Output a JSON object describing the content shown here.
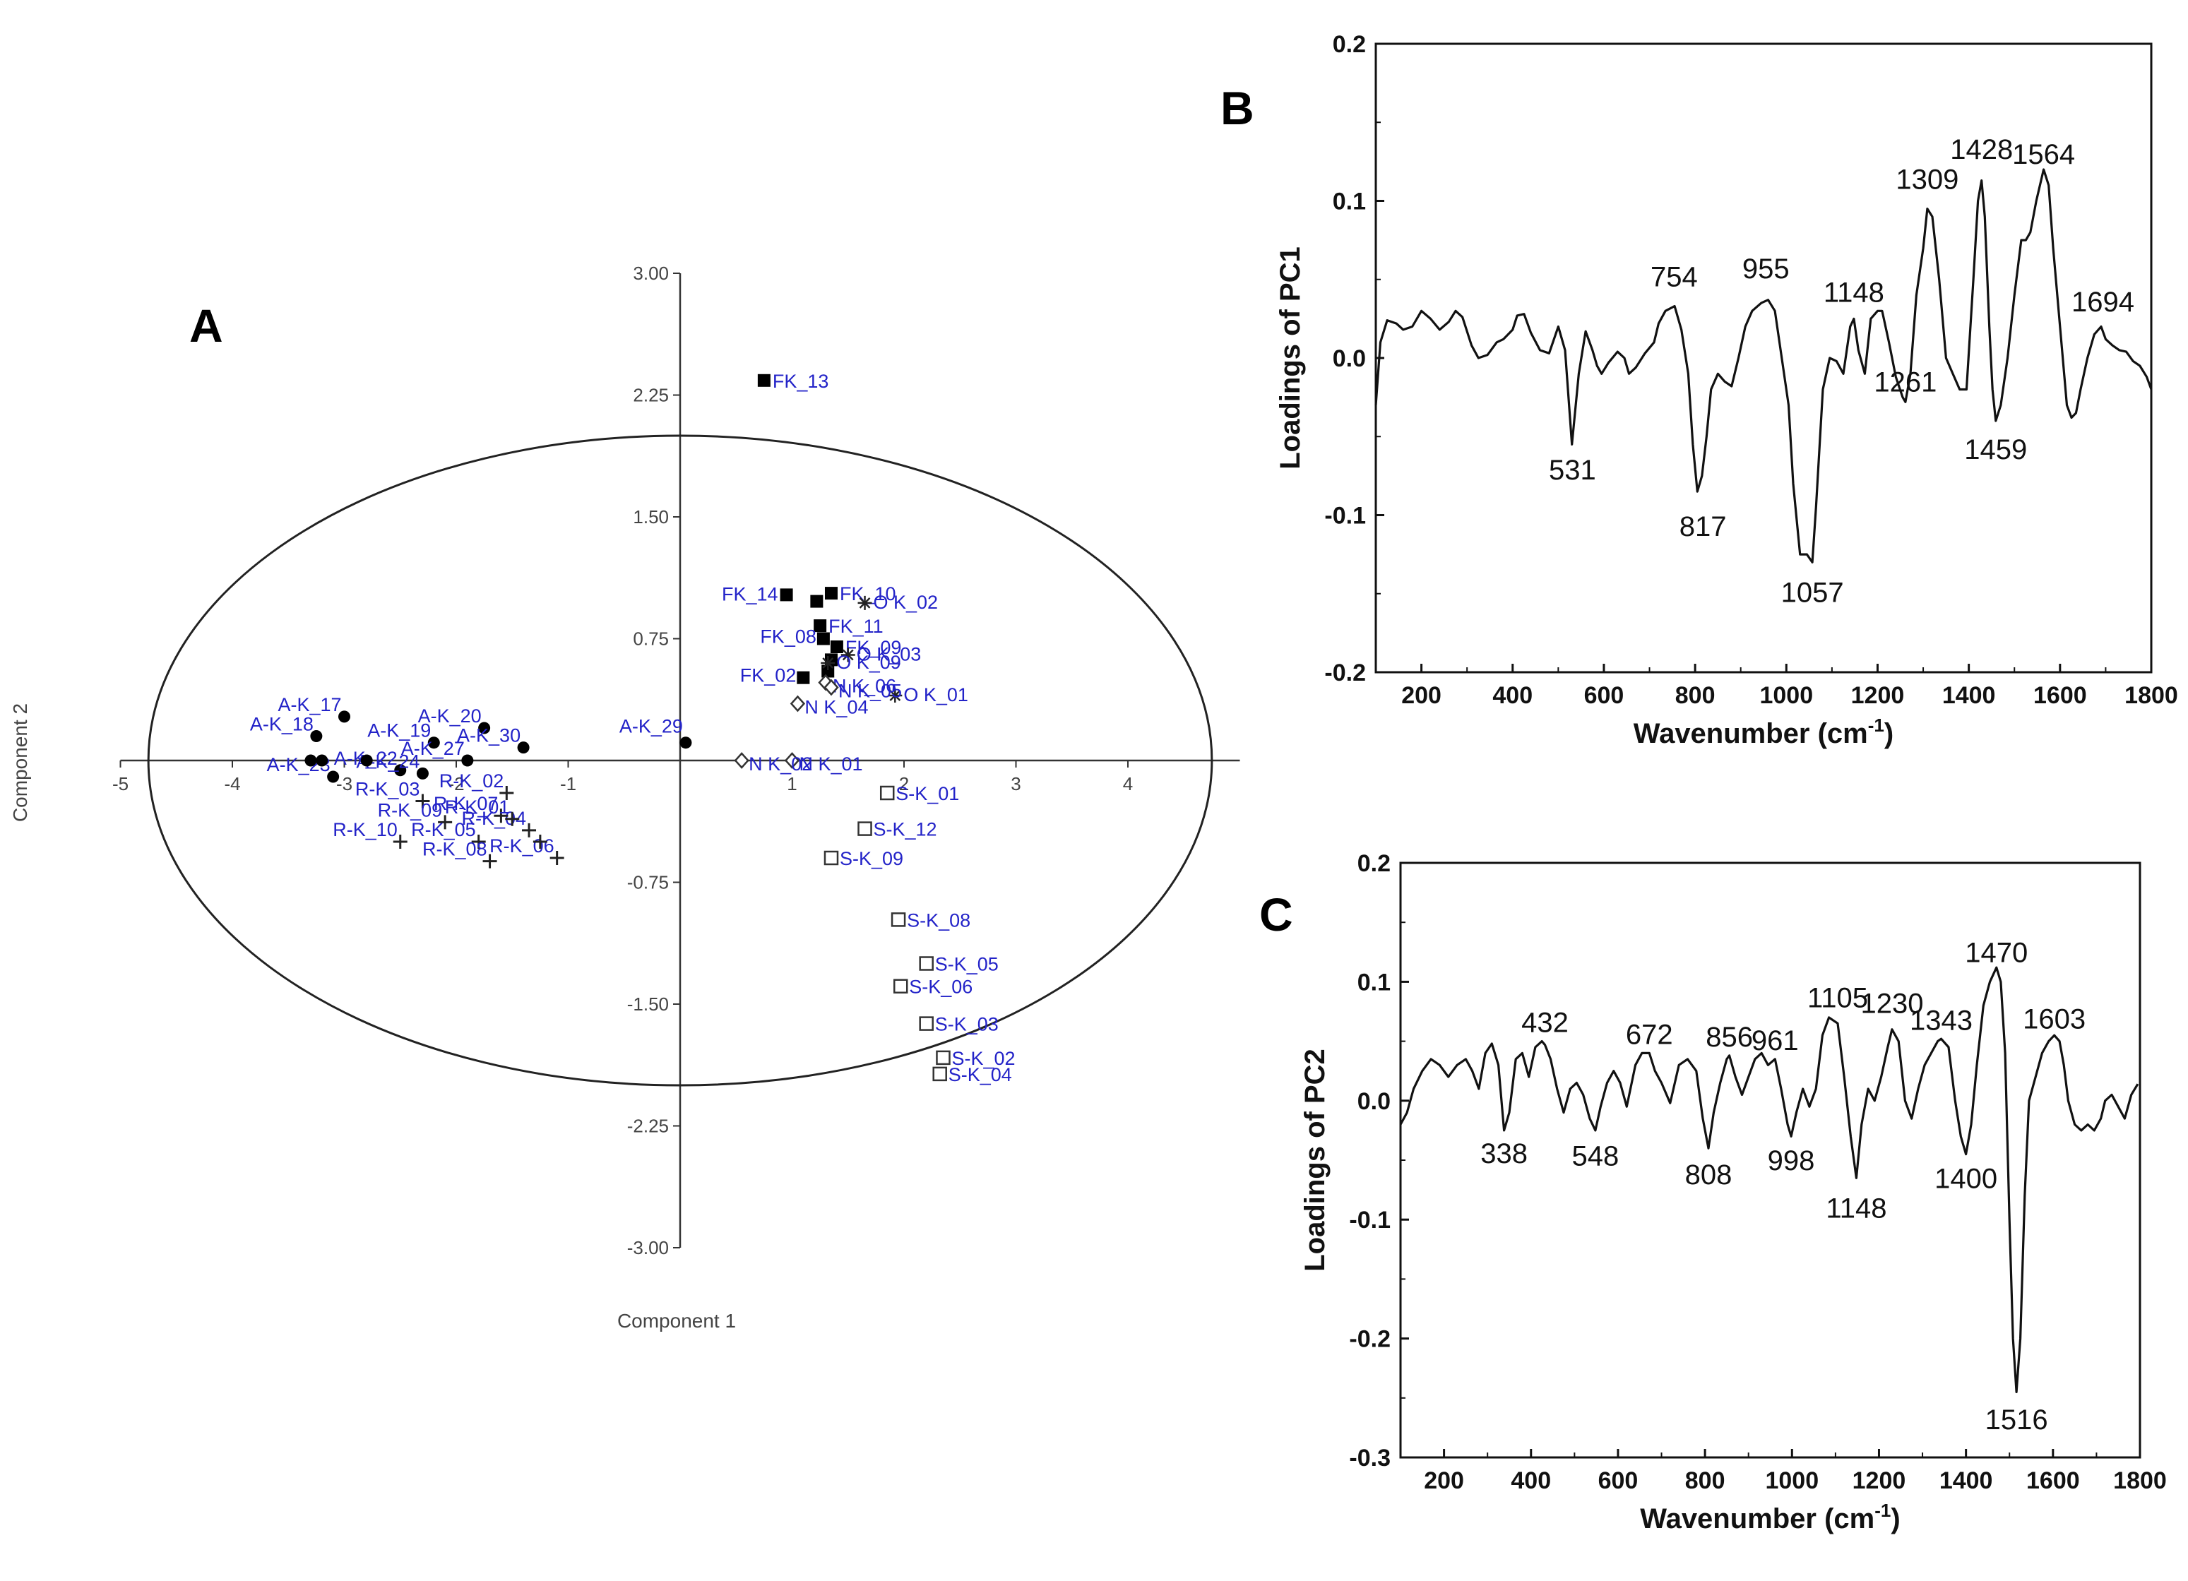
{
  "figure_labels": {
    "a": "A",
    "b": "B",
    "c": "C"
  },
  "chart_data": [
    {
      "panel": "A",
      "type": "scatter",
      "xlabel": "Component 1",
      "ylabel": "Component 2",
      "xlim": [
        -5,
        5
      ],
      "ylim": [
        -3,
        3
      ],
      "xticks": [
        "-5",
        "-4",
        "-3",
        "-2",
        "-1",
        "",
        "1",
        "2",
        "3",
        "4"
      ],
      "yticks": [
        "3.00",
        "2.25",
        "1.50",
        "0.75",
        "-0.75",
        "-1.50",
        "-2.25",
        "-3.00"
      ],
      "ellipse": {
        "center": [
          0,
          0
        ],
        "rx": 4.75,
        "ry": 2.0
      },
      "groups": [
        {
          "name": "A-K",
          "marker": "filled-circle",
          "points": [
            {
              "label": "A-K_17",
              "x": -3.0,
              "y": 0.27
            },
            {
              "label": "A-K_18",
              "x": -3.25,
              "y": 0.15
            },
            {
              "label": "A-K_19",
              "x": -2.2,
              "y": 0.11
            },
            {
              "label": "A-K_20",
              "x": -1.75,
              "y": 0.2
            },
            {
              "label": "A-K_29",
              "x": 0.05,
              "y": 0.11
            },
            {
              "label": "A-K_30",
              "x": -1.4,
              "y": 0.08
            },
            {
              "label": "A-K_23",
              "x": -3.1,
              "y": -0.1
            },
            {
              "label": "A-K_22",
              "x": -2.5,
              "y": -0.06
            },
            {
              "label": "A-K_24",
              "x": -2.3,
              "y": -0.08
            },
            {
              "label": "A-K_27",
              "x": -1.9,
              "y": 0.0
            },
            {
              "label": "",
              "x": -3.2,
              "y": 0.0
            },
            {
              "label": "",
              "x": -2.8,
              "y": 0.0
            },
            {
              "label": "",
              "x": -3.3,
              "y": 0.0
            }
          ]
        },
        {
          "name": "R-K",
          "marker": "plus",
          "points": [
            {
              "label": "R-K_02",
              "x": -1.55,
              "y": -0.2
            },
            {
              "label": "R-K_03",
              "x": -2.3,
              "y": -0.25
            },
            {
              "label": "R-K_09",
              "x": -2.1,
              "y": -0.38
            },
            {
              "label": "R-K_10",
              "x": -2.5,
              "y": -0.5
            },
            {
              "label": "R-K_05",
              "x": -1.8,
              "y": -0.5
            },
            {
              "label": "R-K_08",
              "x": -1.7,
              "y": -0.62
            },
            {
              "label": "R-K_06",
              "x": -1.1,
              "y": -0.6
            },
            {
              "label": "R-K_04",
              "x": -1.35,
              "y": -0.43
            },
            {
              "label": "R-K_07",
              "x": -1.6,
              "y": -0.34
            },
            {
              "label": "R-K_01",
              "x": -1.5,
              "y": -0.36
            },
            {
              "label": "",
              "x": -1.25,
              "y": -0.5
            }
          ]
        },
        {
          "name": "FK",
          "marker": "filled-square",
          "points": [
            {
              "label": "FK_13",
              "x": 0.75,
              "y": 2.34
            },
            {
              "label": "FK_14",
              "x": 0.95,
              "y": 1.02
            },
            {
              "label": "FK_10",
              "x": 1.35,
              "y": 1.03
            },
            {
              "label": "FK_11",
              "x": 1.25,
              "y": 0.83
            },
            {
              "label": "FK_08",
              "x": 1.28,
              "y": 0.75
            },
            {
              "label": "FK_09",
              "x": 1.4,
              "y": 0.7
            },
            {
              "label": "FK_02",
              "x": 1.1,
              "y": 0.51
            },
            {
              "label": "",
              "x": 1.32,
              "y": 0.55
            },
            {
              "label": "",
              "x": 1.35,
              "y": 0.62
            },
            {
              "label": "",
              "x": 1.22,
              "y": 0.98
            }
          ]
        },
        {
          "name": "O K",
          "marker": "asterisk",
          "points": [
            {
              "label": "O K_02",
              "x": 1.65,
              "y": 0.97
            },
            {
              "label": "O K_03",
              "x": 1.5,
              "y": 0.65
            },
            {
              "label": "O K_09",
              "x": 1.32,
              "y": 0.6
            },
            {
              "label": "O K_01",
              "x": 1.92,
              "y": 0.4
            }
          ]
        },
        {
          "name": "N K",
          "marker": "open-diamond",
          "points": [
            {
              "label": "N K_01",
              "x": 1.0,
              "y": 0.0
            },
            {
              "label": "N K_02",
              "x": 0.55,
              "y": 0.0
            },
            {
              "label": "N K_04",
              "x": 1.05,
              "y": 0.35
            },
            {
              "label": "N K_06",
              "x": 1.3,
              "y": 0.48
            },
            {
              "label": "N K_05",
              "x": 1.35,
              "y": 0.45
            }
          ]
        },
        {
          "name": "S-K",
          "marker": "open-square",
          "points": [
            {
              "label": "S-K_01",
              "x": 1.85,
              "y": -0.2
            },
            {
              "label": "S-K_12",
              "x": 1.65,
              "y": -0.42
            },
            {
              "label": "S-K_09",
              "x": 1.35,
              "y": -0.6
            },
            {
              "label": "S-K_08",
              "x": 1.95,
              "y": -0.98
            },
            {
              "label": "S-K_05",
              "x": 2.2,
              "y": -1.25
            },
            {
              "label": "S-K_06",
              "x": 1.97,
              "y": -1.39
            },
            {
              "label": "S-K_03",
              "x": 2.2,
              "y": -1.62
            },
            {
              "label": "S-K_02",
              "x": 2.35,
              "y": -1.83
            },
            {
              "label": "S-K_04",
              "x": 2.32,
              "y": -1.93
            }
          ]
        }
      ]
    },
    {
      "panel": "B",
      "type": "line",
      "xlabel": "Wavenumber (cm",
      "xlabel_sup": "-1",
      "xlabel_end": ")",
      "ylabel": "Loadings of PC1",
      "xlim": [
        100,
        1800
      ],
      "ylim": [
        -0.2,
        0.2
      ],
      "xticks": [
        200,
        400,
        600,
        800,
        1000,
        1200,
        1400,
        1600,
        1800
      ],
      "yticks": [
        "0.2",
        "0.1",
        "0.0",
        "-0.1",
        "-0.2"
      ],
      "series": [
        {
          "name": "PC1",
          "x": [
            100,
            110,
            125,
            145,
            160,
            180,
            200,
            220,
            240,
            260,
            275,
            290,
            310,
            325,
            345,
            365,
            380,
            400,
            410,
            425,
            440,
            460,
            480,
            500,
            515,
            530,
            545,
            560,
            575,
            585,
            595,
            610,
            630,
            645,
            655,
            670,
            690,
            710,
            720,
            735,
            755,
            770,
            785,
            795,
            805,
            815,
            825,
            835,
            850,
            865,
            880,
            895,
            910,
            925,
            945,
            960,
            975,
            990,
            1005,
            1015,
            1030,
            1045,
            1057,
            1065,
            1080,
            1095,
            1110,
            1125,
            1140,
            1148,
            1158,
            1172,
            1185,
            1200,
            1210,
            1225,
            1240,
            1255,
            1261,
            1272,
            1285,
            1300,
            1309,
            1320,
            1335,
            1350,
            1365,
            1380,
            1395,
            1410,
            1420,
            1428,
            1435,
            1445,
            1452,
            1459,
            1470,
            1485,
            1500,
            1515,
            1525,
            1535,
            1548,
            1564,
            1575,
            1585,
            1600,
            1615,
            1625,
            1635,
            1645,
            1660,
            1675,
            1690,
            1700,
            1715,
            1730,
            1745,
            1760,
            1775,
            1790,
            1800
          ],
          "values": [
            -0.03,
            0.01,
            0.024,
            0.022,
            0.018,
            0.02,
            0.03,
            0.025,
            0.018,
            0.023,
            0.03,
            0.026,
            0.008,
            0.0,
            0.002,
            0.01,
            0.012,
            0.018,
            0.027,
            0.028,
            0.016,
            0.005,
            0.003,
            0.02,
            0.005,
            -0.055,
            -0.01,
            0.017,
            0.005,
            -0.005,
            -0.01,
            -0.003,
            0.004,
            0.0,
            -0.01,
            -0.006,
            0.003,
            0.01,
            0.022,
            0.03,
            0.033,
            0.018,
            -0.01,
            -0.055,
            -0.085,
            -0.075,
            -0.05,
            -0.02,
            -0.01,
            -0.015,
            -0.018,
            0.0,
            0.02,
            0.03,
            0.035,
            0.037,
            0.03,
            0.0,
            -0.03,
            -0.08,
            -0.125,
            -0.125,
            -0.13,
            -0.095,
            -0.02,
            0.0,
            -0.002,
            -0.01,
            0.02,
            0.025,
            0.005,
            -0.01,
            0.025,
            0.03,
            0.03,
            0.01,
            -0.012,
            -0.025,
            -0.028,
            -0.01,
            0.04,
            0.07,
            0.095,
            0.09,
            0.05,
            0.0,
            -0.01,
            -0.02,
            -0.02,
            0.05,
            0.1,
            0.113,
            0.09,
            0.02,
            -0.02,
            -0.04,
            -0.03,
            0.0,
            0.04,
            0.075,
            0.075,
            0.08,
            0.1,
            0.12,
            0.11,
            0.07,
            0.02,
            -0.03,
            -0.038,
            -0.035,
            -0.02,
            0.0,
            0.015,
            0.02,
            0.012,
            0.008,
            0.005,
            0.004,
            -0.002,
            -0.005,
            -0.012,
            -0.02
          ]
        }
      ],
      "peak_labels": [
        {
          "text": "531",
          "x": 531,
          "y": -0.071
        },
        {
          "text": "754",
          "x": 754,
          "y": 0.052
        },
        {
          "text": "817",
          "x": 817,
          "y": -0.107
        },
        {
          "text": "955",
          "x": 955,
          "y": 0.057
        },
        {
          "text": "1057",
          "x": 1057,
          "y": -0.149
        },
        {
          "text": "1148",
          "x": 1148,
          "y": 0.042
        },
        {
          "text": "1261",
          "x": 1261,
          "y": -0.015
        },
        {
          "text": "1309",
          "x": 1309,
          "y": 0.114
        },
        {
          "text": "1428",
          "x": 1428,
          "y": 0.133
        },
        {
          "text": "1459",
          "x": 1459,
          "y": -0.058
        },
        {
          "text": "1564",
          "x": 1564,
          "y": 0.13
        },
        {
          "text": "1694",
          "x": 1694,
          "y": 0.036
        }
      ]
    },
    {
      "panel": "C",
      "type": "line",
      "xlabel": "Wavenumber (cm",
      "xlabel_sup": "-1",
      "xlabel_end": ")",
      "ylabel": "Loadings of PC2",
      "xlim": [
        100,
        1800
      ],
      "ylim": [
        -0.3,
        0.2
      ],
      "xticks": [
        200,
        400,
        600,
        800,
        1000,
        1200,
        1400,
        1600,
        1800
      ],
      "yticks": [
        "0.2",
        "0.1",
        "0.0",
        "-0.1",
        "-0.2",
        "-0.3"
      ],
      "series": [
        {
          "name": "PC2",
          "x": [
            100,
            115,
            130,
            150,
            170,
            190,
            210,
            230,
            250,
            265,
            280,
            295,
            310,
            325,
            338,
            350,
            365,
            380,
            395,
            410,
            425,
            432,
            445,
            460,
            475,
            490,
            505,
            520,
            535,
            548,
            560,
            575,
            590,
            605,
            620,
            640,
            655,
            672,
            685,
            700,
            720,
            740,
            760,
            780,
            795,
            808,
            820,
            835,
            850,
            856,
            870,
            885,
            900,
            915,
            930,
            945,
            961,
            975,
            990,
            998,
            1010,
            1025,
            1040,
            1055,
            1070,
            1085,
            1105,
            1120,
            1135,
            1148,
            1160,
            1175,
            1190,
            1205,
            1220,
            1230,
            1245,
            1260,
            1275,
            1290,
            1305,
            1320,
            1335,
            1343,
            1360,
            1375,
            1388,
            1400,
            1412,
            1425,
            1440,
            1455,
            1470,
            1480,
            1490,
            1500,
            1508,
            1516,
            1525,
            1535,
            1545,
            1560,
            1575,
            1590,
            1603,
            1615,
            1625,
            1635,
            1650,
            1665,
            1680,
            1695,
            1710,
            1720,
            1735,
            1750,
            1765,
            1780,
            1795
          ],
          "values": [
            -0.02,
            -0.01,
            0.01,
            0.025,
            0.035,
            0.03,
            0.02,
            0.03,
            0.035,
            0.025,
            0.01,
            0.04,
            0.048,
            0.03,
            -0.025,
            -0.01,
            0.035,
            0.04,
            0.02,
            0.045,
            0.05,
            0.047,
            0.035,
            0.01,
            -0.01,
            0.01,
            0.015,
            0.005,
            -0.015,
            -0.025,
            -0.005,
            0.015,
            0.025,
            0.015,
            -0.005,
            0.03,
            0.04,
            0.04,
            0.025,
            0.015,
            -0.002,
            0.03,
            0.035,
            0.025,
            -0.015,
            -0.04,
            -0.01,
            0.015,
            0.035,
            0.038,
            0.02,
            0.005,
            0.02,
            0.035,
            0.04,
            0.03,
            0.035,
            0.01,
            -0.02,
            -0.03,
            -0.01,
            0.01,
            -0.005,
            0.01,
            0.055,
            0.07,
            0.065,
            0.02,
            -0.03,
            -0.065,
            -0.02,
            0.01,
            0.0,
            0.02,
            0.045,
            0.06,
            0.05,
            0.0,
            -0.015,
            0.01,
            0.03,
            0.04,
            0.05,
            0.052,
            0.045,
            0.0,
            -0.03,
            -0.045,
            -0.02,
            0.03,
            0.08,
            0.1,
            0.112,
            0.1,
            0.04,
            -0.1,
            -0.2,
            -0.245,
            -0.2,
            -0.08,
            0.0,
            0.02,
            0.04,
            0.05,
            0.055,
            0.05,
            0.03,
            0.0,
            -0.02,
            -0.025,
            -0.02,
            -0.025,
            -0.015,
            0.0,
            0.005,
            -0.005,
            -0.015,
            0.005,
            0.014
          ]
        }
      ],
      "peak_labels": [
        {
          "text": "338",
          "x": 338,
          "y": -0.044
        },
        {
          "text": "432",
          "x": 432,
          "y": 0.066
        },
        {
          "text": "548",
          "x": 548,
          "y": -0.046
        },
        {
          "text": "672",
          "x": 672,
          "y": 0.056
        },
        {
          "text": "808",
          "x": 808,
          "y": -0.062
        },
        {
          "text": "856",
          "x": 856,
          "y": 0.054
        },
        {
          "text": "961",
          "x": 961,
          "y": 0.051
        },
        {
          "text": "998",
          "x": 998,
          "y": -0.05
        },
        {
          "text": "1105",
          "x": 1105,
          "y": 0.087
        },
        {
          "text": "1148",
          "x": 1148,
          "y": -0.09
        },
        {
          "text": "1230",
          "x": 1230,
          "y": 0.082
        },
        {
          "text": "1343",
          "x": 1343,
          "y": 0.068
        },
        {
          "text": "1400",
          "x": 1400,
          "y": -0.065
        },
        {
          "text": "1470",
          "x": 1470,
          "y": 0.125
        },
        {
          "text": "1516",
          "x": 1516,
          "y": -0.268
        },
        {
          "text": "1603",
          "x": 1603,
          "y": 0.069
        }
      ]
    }
  ]
}
